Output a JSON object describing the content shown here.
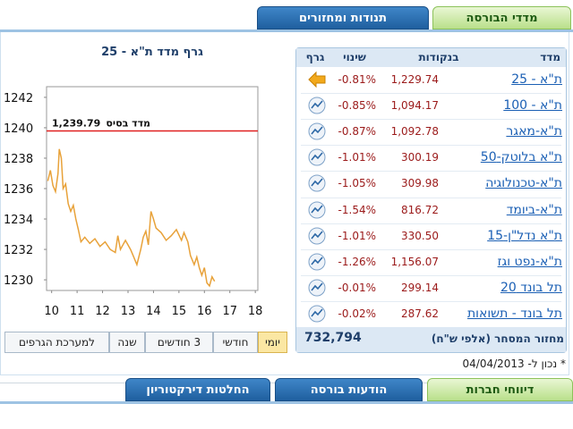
{
  "tabs_top": [
    "מדדי הבורסה",
    "תנודות ומחזורים"
  ],
  "chart_data": {
    "type": "line",
    "title": "גרף מדד ת\"א - 25",
    "x": [
      9.85,
      9.95,
      10.05,
      10.15,
      10.25,
      10.3,
      10.38,
      10.45,
      10.55,
      10.65,
      10.75,
      10.85,
      10.95,
      11.05,
      11.15,
      11.3,
      11.5,
      11.7,
      11.9,
      12.1,
      12.3,
      12.5,
      12.6,
      12.7,
      12.9,
      13.1,
      13.2,
      13.35,
      13.5,
      13.6,
      13.7,
      13.8,
      13.9,
      14.0,
      14.1,
      14.3,
      14.5,
      14.7,
      14.9,
      15.1,
      15.2,
      15.35,
      15.45,
      15.6,
      15.7,
      15.8,
      15.9,
      16.0,
      16.1,
      16.2,
      16.3,
      16.4
    ],
    "values": [
      1236.5,
      1237.2,
      1236.2,
      1235.8,
      1237,
      1238.6,
      1238,
      1236,
      1236.3,
      1235,
      1234.5,
      1234.9,
      1234,
      1233.3,
      1232.5,
      1232.8,
      1232.4,
      1232.7,
      1232.2,
      1232.5,
      1232,
      1231.8,
      1232.9,
      1232,
      1232.6,
      1232,
      1231.6,
      1231,
      1232,
      1232.8,
      1233.2,
      1232.3,
      1234.5,
      1234,
      1233.4,
      1233.1,
      1232.6,
      1232.9,
      1233.3,
      1232.6,
      1233.1,
      1232.5,
      1231.6,
      1231,
      1231.5,
      1230.8,
      1230.3,
      1230.8,
      1229.8,
      1229.6,
      1230.2,
      1229.9
    ],
    "color": "#e8a23a",
    "xlim": [
      9.8,
      18.1
    ],
    "ylim": [
      1229.3,
      1242.7
    ],
    "xticks": [
      10,
      11,
      12,
      13,
      14,
      15,
      16,
      17,
      18
    ],
    "yticks": [
      1230,
      1232,
      1234,
      1236,
      1238,
      1240,
      1242
    ],
    "base_line": {
      "text": "מדד בסיס",
      "value": 1239.79,
      "label": "1,239.79",
      "color": "#e02020"
    }
  },
  "chart_buttons": [
    "יומי",
    "חודשי",
    "3 חודשים",
    "שנה",
    "למערכת הגרפים"
  ],
  "table": {
    "header": [
      "מדד",
      "בנקודות",
      "שינוי",
      "גרף"
    ],
    "rows": [
      [
        "ת\"א - 25",
        "1,229.74",
        "-0.81%"
      ],
      [
        "ת\"א - 100",
        "1,094.17",
        "-0.85%"
      ],
      [
        "ת\"א-מאגר",
        "1,092.78",
        "-0.87%"
      ],
      [
        "ת\"א בלוטק-50",
        "300.19",
        "-1.01%"
      ],
      [
        "ת\"א-טכנולוגיה",
        "309.98",
        "-1.05%"
      ],
      [
        "ת\"א-ביומד",
        "816.72",
        "-1.54%"
      ],
      [
        "ת\"א נדל\"ן-15",
        "330.50",
        "-1.01%"
      ],
      [
        "ת\"א-נפט וגז",
        "1,156.07",
        "-1.26%"
      ],
      [
        "תל בונד 20",
        "299.14",
        "-0.01%"
      ],
      [
        "תל בונד - תשואות",
        "287.62",
        "-0.02%"
      ]
    ],
    "turnover_label": "מחזור המסחר (אלפי ש\"ח)",
    "turnover_value": "732,794"
  },
  "footer_note": "* נכון ל- 04/04/2013",
  "tabs_bottom": [
    "דיווחי חברות",
    "הודעות בורסה",
    "החלטות דירקטוריון"
  ]
}
